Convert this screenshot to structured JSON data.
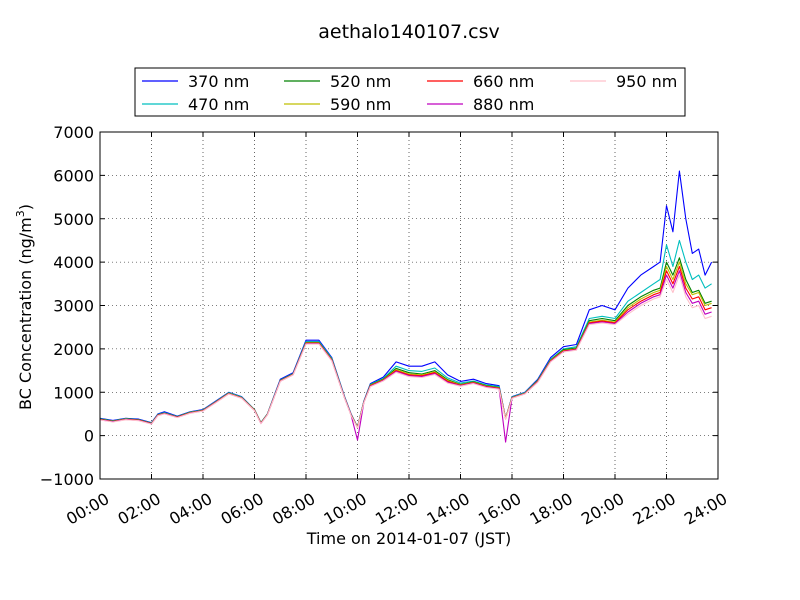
{
  "chart_data": {
    "type": "line",
    "title": "aethalo140107.csv",
    "xlabel": "Time on 2014-01-07 (JST)",
    "ylabel": "BC Concentration (ng/m³)",
    "ylabel_main": "BC Concentration (ng/m",
    "ylabel_sup": "3",
    "ylabel_close": ")",
    "xlim": [
      "00:00",
      "24:00"
    ],
    "ylim": [
      -1000,
      7000
    ],
    "xticks": [
      "00:00",
      "02:00",
      "04:00",
      "06:00",
      "08:00",
      "10:00",
      "12:00",
      "14:00",
      "16:00",
      "18:00",
      "20:00",
      "22:00",
      "24:00"
    ],
    "yticks": [
      -1000,
      0,
      1000,
      2000,
      3000,
      4000,
      5000,
      6000,
      7000
    ],
    "ytick_labels": [
      "−1000",
      "0",
      "1000",
      "2000",
      "3000",
      "4000",
      "5000",
      "6000",
      "7000"
    ],
    "grid": true,
    "legend_position": "top (above plot)",
    "x": [
      "00:00",
      "00:30",
      "01:00",
      "01:30",
      "02:00",
      "02:15",
      "02:30",
      "03:00",
      "03:30",
      "04:00",
      "04:30",
      "05:00",
      "05:30",
      "06:00",
      "06:15",
      "06:30",
      "06:45",
      "07:00",
      "07:30",
      "08:00",
      "08:30",
      "09:00",
      "09:30",
      "09:45",
      "10:00",
      "10:15",
      "10:30",
      "11:00",
      "11:30",
      "12:00",
      "12:30",
      "13:00",
      "13:30",
      "14:00",
      "14:30",
      "15:00",
      "15:30",
      "15:45",
      "16:00",
      "16:30",
      "17:00",
      "17:30",
      "18:00",
      "18:30",
      "19:00",
      "19:30",
      "20:00",
      "20:30",
      "21:00",
      "21:30",
      "21:45",
      "22:00",
      "22:15",
      "22:30",
      "22:45",
      "23:00",
      "23:15",
      "23:30",
      "23:45"
    ],
    "series": [
      {
        "name": "370 nm",
        "color": "#0000ff",
        "values": [
          400,
          350,
          400,
          380,
          300,
          500,
          550,
          450,
          550,
          600,
          800,
          1000,
          900,
          600,
          300,
          500,
          900,
          1300,
          1450,
          2200,
          2200,
          1800,
          900,
          500,
          200,
          800,
          1200,
          1350,
          1700,
          1600,
          1600,
          1700,
          1400,
          1250,
          1300,
          1200,
          1150,
          400,
          900,
          1000,
          1300,
          1800,
          2050,
          2100,
          2900,
          3000,
          2900,
          3400,
          3700,
          3900,
          4000,
          5300,
          4700,
          6100,
          5000,
          4200,
          4300,
          3700,
          4000
        ]
      },
      {
        "name": "470 nm",
        "color": "#00bfbf",
        "values": [
          390,
          340,
          390,
          370,
          290,
          490,
          530,
          440,
          540,
          590,
          790,
          990,
          890,
          600,
          300,
          500,
          890,
          1280,
          1430,
          2170,
          2170,
          1780,
          890,
          490,
          200,
          790,
          1180,
          1320,
          1600,
          1500,
          1480,
          1560,
          1330,
          1210,
          1260,
          1170,
          1130,
          400,
          890,
          990,
          1280,
          1760,
          2000,
          2050,
          2700,
          2750,
          2700,
          3100,
          3300,
          3500,
          3600,
          4400,
          3900,
          4500,
          4000,
          3600,
          3700,
          3400,
          3500
        ]
      },
      {
        "name": "520 nm",
        "color": "#008000",
        "values": [
          380,
          335,
          385,
          365,
          285,
          480,
          520,
          435,
          535,
          585,
          780,
          980,
          880,
          595,
          295,
          495,
          880,
          1270,
          1420,
          2150,
          2150,
          1760,
          880,
          485,
          195,
          780,
          1170,
          1300,
          1550,
          1450,
          1420,
          1500,
          1290,
          1180,
          1240,
          1150,
          1110,
          395,
          880,
          980,
          1270,
          1740,
          1980,
          2020,
          2650,
          2700,
          2650,
          3000,
          3200,
          3350,
          3400,
          4000,
          3700,
          4100,
          3600,
          3300,
          3350,
          3050,
          3100
        ]
      },
      {
        "name": "590 nm",
        "color": "#bfbf00",
        "values": [
          375,
          330,
          380,
          360,
          280,
          475,
          515,
          430,
          530,
          580,
          775,
          975,
          875,
          590,
          290,
          490,
          875,
          1265,
          1415,
          2140,
          2140,
          1750,
          875,
          480,
          190,
          775,
          1160,
          1290,
          1520,
          1420,
          1400,
          1470,
          1270,
          1170,
          1230,
          1140,
          1100,
          390,
          875,
          975,
          1260,
          1730,
          1960,
          2000,
          2620,
          2660,
          2620,
          2950,
          3150,
          3300,
          3350,
          3900,
          3600,
          4000,
          3500,
          3250,
          3300,
          3000,
          3050
        ]
      },
      {
        "name": "660 nm",
        "color": "#ff0000",
        "values": [
          370,
          325,
          375,
          355,
          275,
          470,
          510,
          425,
          525,
          575,
          770,
          970,
          870,
          585,
          285,
          485,
          870,
          1260,
          1410,
          2130,
          2130,
          1740,
          870,
          475,
          185,
          770,
          1150,
          1280,
          1500,
          1400,
          1380,
          1450,
          1250,
          1160,
          1220,
          1130,
          1090,
          385,
          870,
          970,
          1250,
          1720,
          1950,
          1990,
          2600,
          2640,
          2600,
          2900,
          3100,
          3250,
          3300,
          3800,
          3500,
          3900,
          3400,
          3150,
          3200,
          2900,
          2950
        ]
      },
      {
        "name": "880 nm",
        "color": "#bf00bf",
        "values": [
          365,
          320,
          370,
          350,
          270,
          465,
          505,
          420,
          520,
          570,
          765,
          965,
          865,
          580,
          280,
          480,
          865,
          1255,
          1405,
          2120,
          2120,
          1730,
          865,
          470,
          -100,
          765,
          1140,
          1270,
          1480,
          1380,
          1360,
          1430,
          1230,
          1150,
          1210,
          1120,
          1080,
          -150,
          865,
          965,
          1240,
          1710,
          1940,
          1980,
          2580,
          2620,
          2580,
          2850,
          3050,
          3200,
          3250,
          3700,
          3400,
          3800,
          3300,
          3050,
          3100,
          2800,
          2850
        ]
      },
      {
        "name": "950 nm",
        "color": "#ffc0cb",
        "values": [
          360,
          315,
          365,
          345,
          265,
          460,
          500,
          415,
          515,
          565,
          760,
          960,
          860,
          575,
          275,
          475,
          860,
          1250,
          1400,
          2110,
          2110,
          1720,
          860,
          465,
          180,
          760,
          1130,
          1260,
          1460,
          1360,
          1340,
          1410,
          1210,
          1140,
          1200,
          1110,
          1070,
          375,
          860,
          960,
          1230,
          1700,
          1930,
          1970,
          2560,
          2600,
          2560,
          2800,
          3000,
          3150,
          3200,
          3600,
          3300,
          3700,
          3200,
          2950,
          3000,
          2700,
          2750
        ]
      }
    ]
  }
}
